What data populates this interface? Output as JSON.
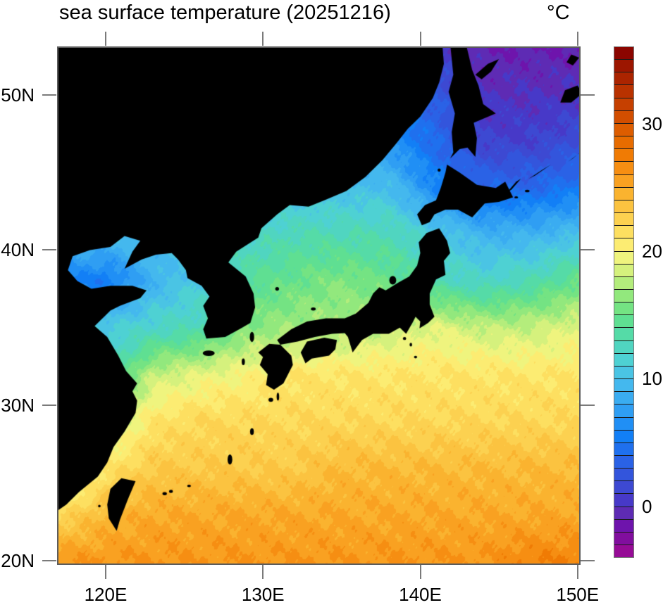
{
  "title": "sea surface temperature (20251216)",
  "units_label": "°C",
  "map": {
    "frame_color": "#5c5c5c",
    "tick_color": "#7a7a7a",
    "land_color": "#000000",
    "lat_ticks": [
      {
        "label": "50N",
        "value": 50
      },
      {
        "label": "40N",
        "value": 40
      },
      {
        "label": "30N",
        "value": 30
      },
      {
        "label": "20N",
        "value": 20
      }
    ],
    "lon_ticks": [
      {
        "label": "120E",
        "value": 120
      },
      {
        "label": "130E",
        "value": 130
      },
      {
        "label": "140E",
        "value": 140
      },
      {
        "label": "150E",
        "value": 150
      }
    ]
  },
  "colorbar": {
    "min": -4,
    "max": 36,
    "interval": 1,
    "tick_labels": [
      {
        "label": "30",
        "value": 30
      },
      {
        "label": "20",
        "value": 20
      },
      {
        "label": "10",
        "value": 10
      },
      {
        "label": "0",
        "value": 0
      }
    ],
    "palette": [
      "#960B96",
      "#810E9E",
      "#6E14AC",
      "#5E2BB4",
      "#4739C8",
      "#3D49D2",
      "#3355DC",
      "#2A62E6",
      "#1F70EE",
      "#127FF6",
      "#208FF5",
      "#2F9EF3",
      "#3AACF1",
      "#44B8EE",
      "#4AC4E4",
      "#4ED1D3",
      "#50D5C0",
      "#55DBA7",
      "#5FDF92",
      "#74E383",
      "#92E87D",
      "#B4ED7C",
      "#D5F17D",
      "#EFF47E",
      "#FCEC72",
      "#FDDF60",
      "#FCD150",
      "#FBC340",
      "#FAB32F",
      "#F9A121",
      "#F68E12",
      "#F07B04",
      "#E76C00",
      "#DD5D00",
      "#D24E00",
      "#C64000",
      "#B93200",
      "#AB2400",
      "#9C1600",
      "#8B0500"
    ]
  },
  "chart_data": {
    "type": "heatmap",
    "title": "sea surface temperature (20251216)",
    "date_shown": "20251216",
    "units": "°C",
    "xlabel": "",
    "ylabel": "",
    "legend_position": "right-colorbar",
    "grid_on": false,
    "domain": {
      "lon_min": 117.0,
      "lon_max": 150.1,
      "lat_min": 19.8,
      "lat_max": 53.03
    },
    "colorbar_range": [
      -4,
      36
    ],
    "grid_lons": [
      117,
      120,
      123,
      126,
      129,
      132,
      135,
      138,
      141,
      144,
      147,
      150
    ],
    "grid_lats": [
      53,
      50,
      47,
      44,
      41,
      38,
      35,
      32,
      29,
      26,
      23,
      20
    ],
    "sst_values": [
      [
        3,
        3,
        3,
        3,
        4,
        4,
        4,
        3,
        1,
        -1,
        -1,
        -1
      ],
      [
        4,
        4,
        4,
        4,
        5,
        5,
        6,
        5,
        3,
        0,
        0,
        0
      ],
      [
        6,
        6,
        6,
        6,
        7,
        7,
        8,
        7,
        4,
        1,
        1,
        2
      ],
      [
        8,
        8,
        8,
        9,
        9,
        10,
        10,
        10,
        6,
        4,
        4,
        5
      ],
      [
        10,
        10,
        10,
        11,
        12,
        13,
        13,
        13,
        11,
        9,
        9,
        10
      ],
      [
        6,
        5,
        9,
        11,
        14,
        15,
        16,
        15,
        13,
        12,
        13,
        15
      ],
      [
        12,
        11,
        12,
        13,
        16,
        17,
        17,
        18,
        19,
        18,
        18,
        19
      ],
      [
        16,
        12,
        18,
        19,
        20,
        21,
        21,
        21,
        21,
        21,
        21,
        21
      ],
      [
        18,
        17,
        21,
        22,
        22,
        22,
        22,
        22,
        22,
        22,
        22,
        22
      ],
      [
        15,
        21,
        23,
        23,
        23,
        23,
        24,
        24,
        24,
        24,
        24,
        24
      ],
      [
        22,
        24,
        25,
        25,
        25,
        25,
        25,
        25,
        25,
        25,
        25,
        25
      ],
      [
        26,
        26,
        26,
        26,
        26,
        26,
        26,
        26,
        26,
        26,
        27,
        27
      ]
    ],
    "land_polygons": {
      "mainland_asia": [
        [
          116.8,
          53.3
        ],
        [
          141.4,
          53.3
        ],
        [
          141.5,
          52.0
        ],
        [
          141.2,
          50.8
        ],
        [
          140.8,
          49.8
        ],
        [
          140.0,
          48.6
        ],
        [
          139.2,
          47.8
        ],
        [
          138.5,
          46.9
        ],
        [
          137.6,
          45.8
        ],
        [
          136.5,
          44.7
        ],
        [
          135.3,
          43.8
        ],
        [
          133.9,
          43.2
        ],
        [
          132.9,
          42.8
        ],
        [
          131.7,
          42.9
        ],
        [
          130.9,
          42.3
        ],
        [
          129.9,
          41.4
        ],
        [
          129.7,
          40.8
        ],
        [
          128.3,
          39.9
        ],
        [
          127.8,
          39.2
        ],
        [
          128.9,
          38.3
        ],
        [
          129.4,
          37.2
        ],
        [
          129.5,
          36.3
        ],
        [
          129.2,
          35.3
        ],
        [
          128.5,
          34.9
        ],
        [
          127.6,
          34.4
        ],
        [
          126.4,
          34.3
        ],
        [
          126.2,
          34.9
        ],
        [
          126.5,
          35.6
        ],
        [
          126.2,
          36.4
        ],
        [
          126.6,
          37.0
        ],
        [
          126.1,
          37.7
        ],
        [
          125.2,
          38.2
        ],
        [
          125.1,
          38.7
        ],
        [
          124.6,
          39.4
        ],
        [
          124.2,
          39.8
        ],
        [
          123.2,
          39.7
        ],
        [
          122.3,
          39.4
        ],
        [
          121.2,
          38.8
        ],
        [
          121.7,
          39.9
        ],
        [
          122.2,
          40.6
        ],
        [
          121.2,
          40.9
        ],
        [
          120.3,
          40.2
        ],
        [
          119.0,
          40.0
        ],
        [
          117.9,
          39.6
        ],
        [
          117.6,
          38.7
        ],
        [
          118.2,
          38.0
        ],
        [
          119.1,
          37.5
        ],
        [
          120.3,
          37.7
        ],
        [
          121.7,
          37.7
        ],
        [
          122.6,
          37.4
        ],
        [
          122.2,
          36.9
        ],
        [
          120.9,
          36.4
        ],
        [
          120.3,
          36.1
        ],
        [
          119.3,
          35.1
        ],
        [
          120.1,
          34.4
        ],
        [
          120.8,
          33.2
        ],
        [
          121.3,
          32.2
        ],
        [
          122.0,
          31.4
        ],
        [
          121.7,
          30.9
        ],
        [
          122.0,
          30.3
        ],
        [
          121.9,
          29.5
        ],
        [
          121.2,
          28.3
        ],
        [
          120.5,
          27.3
        ],
        [
          120.1,
          26.3
        ],
        [
          119.5,
          25.4
        ],
        [
          118.3,
          24.4
        ],
        [
          117.5,
          23.6
        ],
        [
          116.8,
          23.1
        ]
      ],
      "sakhalin": [
        [
          141.9,
          53.3
        ],
        [
          142.1,
          51.3
        ],
        [
          141.8,
          50.2
        ],
        [
          142.2,
          48.8
        ],
        [
          142.0,
          47.6
        ],
        [
          142.1,
          46.3
        ],
        [
          141.9,
          45.9
        ],
        [
          142.5,
          46.5
        ],
        [
          143.0,
          46.6
        ],
        [
          143.5,
          46.0
        ],
        [
          143.6,
          47.2
        ],
        [
          143.4,
          48.2
        ],
        [
          144.8,
          48.8
        ],
        [
          144.0,
          49.4
        ],
        [
          143.7,
          50.6
        ],
        [
          143.3,
          51.6
        ],
        [
          142.9,
          53.3
        ]
      ],
      "hokkaido": [
        [
          140.1,
          41.6
        ],
        [
          139.8,
          42.3
        ],
        [
          140.3,
          42.9
        ],
        [
          141.0,
          43.2
        ],
        [
          141.3,
          44.0
        ],
        [
          141.6,
          45.0
        ],
        [
          141.7,
          45.5
        ],
        [
          142.5,
          45.0
        ],
        [
          143.6,
          44.2
        ],
        [
          144.8,
          44.0
        ],
        [
          145.4,
          44.4
        ],
        [
          145.9,
          43.4
        ],
        [
          145.0,
          43.1
        ],
        [
          144.1,
          43.0
        ],
        [
          143.3,
          42.1
        ],
        [
          142.4,
          42.6
        ],
        [
          141.6,
          42.6
        ],
        [
          140.9,
          42.3
        ],
        [
          140.6,
          41.8
        ]
      ],
      "honshu": [
        [
          141.2,
          41.4
        ],
        [
          140.4,
          41.1
        ],
        [
          139.9,
          40.5
        ],
        [
          140.0,
          39.8
        ],
        [
          139.8,
          39.0
        ],
        [
          139.3,
          38.3
        ],
        [
          138.6,
          37.9
        ],
        [
          137.8,
          37.4
        ],
        [
          137.4,
          37.6
        ],
        [
          137.0,
          37.2
        ],
        [
          136.7,
          36.6
        ],
        [
          135.9,
          35.9
        ],
        [
          135.2,
          35.6
        ],
        [
          134.0,
          35.6
        ],
        [
          132.8,
          35.4
        ],
        [
          131.8,
          34.9
        ],
        [
          130.9,
          34.2
        ],
        [
          131.1,
          33.9
        ],
        [
          132.2,
          34.1
        ],
        [
          133.3,
          34.4
        ],
        [
          134.4,
          34.6
        ],
        [
          135.2,
          34.65
        ],
        [
          135.4,
          34.4
        ],
        [
          135.7,
          33.4
        ],
        [
          136.3,
          34.2
        ],
        [
          137.0,
          34.6
        ],
        [
          138.0,
          34.6
        ],
        [
          138.7,
          35.0
        ],
        [
          139.1,
          34.6
        ],
        [
          139.5,
          35.3
        ],
        [
          139.7,
          35.7
        ],
        [
          140.0,
          35.4
        ],
        [
          139.95,
          34.95
        ],
        [
          140.5,
          35.3
        ],
        [
          140.9,
          35.7
        ],
        [
          140.6,
          36.5
        ],
        [
          140.6,
          37.2
        ],
        [
          141.0,
          38.1
        ],
        [
          141.6,
          38.4
        ],
        [
          141.5,
          39.3
        ],
        [
          141.9,
          39.8
        ],
        [
          141.7,
          40.6
        ]
      ],
      "shikoku": [
        [
          132.4,
          33.4
        ],
        [
          132.8,
          34.1
        ],
        [
          133.9,
          34.35
        ],
        [
          134.7,
          34.2
        ],
        [
          134.6,
          33.6
        ],
        [
          134.2,
          33.2
        ],
        [
          133.1,
          33.0
        ],
        [
          132.7,
          32.7
        ]
      ],
      "kyushu": [
        [
          130.4,
          33.95
        ],
        [
          131.1,
          33.9
        ],
        [
          131.8,
          33.2
        ],
        [
          131.9,
          32.6
        ],
        [
          131.3,
          31.4
        ],
        [
          130.7,
          31.0
        ],
        [
          130.2,
          31.3
        ],
        [
          130.3,
          32.0
        ],
        [
          129.8,
          32.6
        ],
        [
          130.0,
          33.1
        ],
        [
          129.7,
          33.4
        ]
      ],
      "taiwan": [
        [
          121.0,
          25.3
        ],
        [
          121.9,
          25.1
        ],
        [
          121.4,
          23.9
        ],
        [
          120.9,
          22.6
        ],
        [
          120.7,
          21.9
        ],
        [
          120.2,
          22.7
        ],
        [
          120.1,
          23.6
        ],
        [
          120.3,
          24.6
        ]
      ],
      "kunashiri": [
        [
          145.5,
          43.7
        ],
        [
          146.1,
          44.4
        ],
        [
          146.4,
          44.6
        ],
        [
          145.8,
          43.9
        ]
      ],
      "iturup": [
        [
          146.9,
          44.6
        ],
        [
          147.8,
          45.2
        ],
        [
          148.3,
          45.5
        ],
        [
          147.3,
          44.8
        ]
      ],
      "urup": [
        [
          149.4,
          45.7
        ],
        [
          150.2,
          46.3
        ],
        [
          150.4,
          46.5
        ],
        [
          149.7,
          45.9
        ]
      ],
      "ice_patch_east_sakhalin": [
        [
          143.5,
          51.3
        ],
        [
          144.3,
          52.0
        ],
        [
          145.0,
          52.3
        ],
        [
          144.5,
          51.5
        ],
        [
          143.9,
          51.0
        ]
      ],
      "ice_patch_okhotsk_ne": [
        [
          148.9,
          49.5
        ],
        [
          149.2,
          50.3
        ],
        [
          150.0,
          50.6
        ],
        [
          150.3,
          50.1
        ],
        [
          149.6,
          49.5
        ]
      ],
      "ice_patch_okhotsk_n": [
        [
          149.3,
          52.1
        ],
        [
          149.6,
          52.6
        ],
        [
          150.1,
          52.4
        ],
        [
          149.7,
          51.9
        ]
      ]
    },
    "islands": [
      {
        "name": "jeju",
        "lon": 126.55,
        "lat": 33.35,
        "rx": 0.38,
        "ry": 0.18
      },
      {
        "name": "tsushima",
        "lon": 129.3,
        "lat": 34.4,
        "rx": 0.14,
        "ry": 0.33
      },
      {
        "name": "ulleungdo",
        "lon": 130.9,
        "lat": 37.5,
        "rx": 0.12,
        "ry": 0.12
      },
      {
        "name": "sado",
        "lon": 138.25,
        "lat": 38.05,
        "rx": 0.22,
        "ry": 0.28
      },
      {
        "name": "oki",
        "lon": 133.2,
        "lat": 36.2,
        "rx": 0.15,
        "ry": 0.1
      },
      {
        "name": "izu-oshima",
        "lon": 139.0,
        "lat": 34.3,
        "rx": 0.1,
        "ry": 0.1
      },
      {
        "name": "niijima",
        "lon": 139.4,
        "lat": 33.9,
        "rx": 0.08,
        "ry": 0.12
      },
      {
        "name": "hachijo",
        "lon": 139.7,
        "lat": 33.1,
        "rx": 0.1,
        "ry": 0.08
      },
      {
        "name": "yakushima",
        "lon": 130.5,
        "lat": 30.35,
        "rx": 0.15,
        "ry": 0.13
      },
      {
        "name": "tanegashima",
        "lon": 130.95,
        "lat": 30.55,
        "rx": 0.08,
        "ry": 0.25
      },
      {
        "name": "amami",
        "lon": 129.3,
        "lat": 28.3,
        "rx": 0.12,
        "ry": 0.22
      },
      {
        "name": "okinawa",
        "lon": 127.9,
        "lat": 26.5,
        "rx": 0.15,
        "ry": 0.33
      },
      {
        "name": "miyako",
        "lon": 125.3,
        "lat": 24.8,
        "rx": 0.12,
        "ry": 0.08
      },
      {
        "name": "ishigaki",
        "lon": 124.15,
        "lat": 24.45,
        "rx": 0.12,
        "ry": 0.1
      },
      {
        "name": "iriomote",
        "lon": 123.75,
        "lat": 24.3,
        "rx": 0.14,
        "ry": 0.1
      },
      {
        "name": "penghu",
        "lon": 119.6,
        "lat": 23.5,
        "rx": 0.08,
        "ry": 0.08
      },
      {
        "name": "goto",
        "lon": 128.75,
        "lat": 32.8,
        "rx": 0.1,
        "ry": 0.22
      },
      {
        "name": "shikotan",
        "lon": 146.8,
        "lat": 43.8,
        "rx": 0.15,
        "ry": 0.08
      },
      {
        "name": "habomai",
        "lon": 146.1,
        "lat": 43.4,
        "rx": 0.12,
        "ry": 0.06
      },
      {
        "name": "rishiri",
        "lon": 141.2,
        "lat": 45.15,
        "rx": 0.1,
        "ry": 0.1
      }
    ]
  }
}
